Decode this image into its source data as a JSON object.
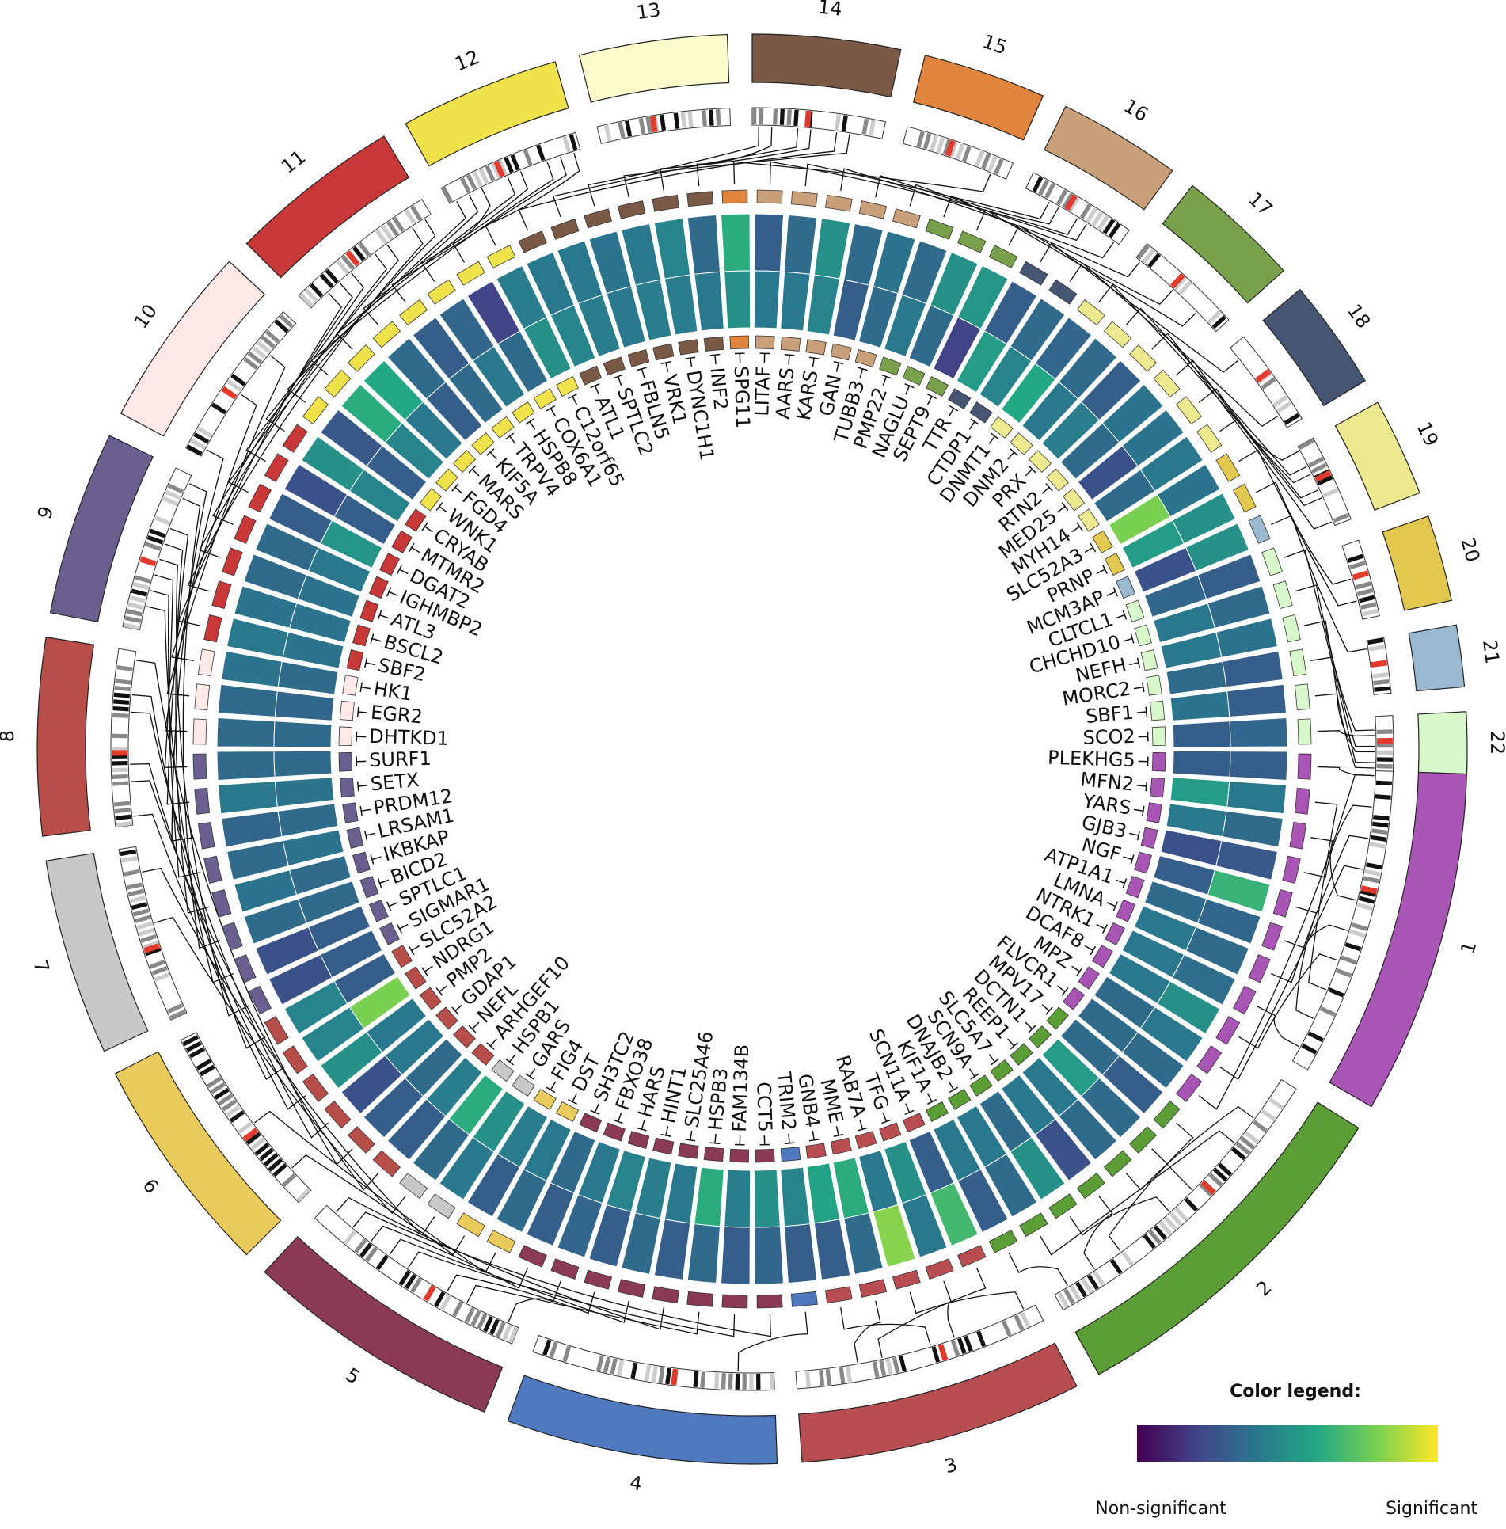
{
  "chart_data": {
    "type": "circos",
    "chromosomes": [
      {
        "label": "1",
        "color": "#a855b5"
      },
      {
        "label": "2",
        "color": "#5a9e35"
      },
      {
        "label": "3",
        "color": "#b84e52"
      },
      {
        "label": "4",
        "color": "#4f79bf"
      },
      {
        "label": "5",
        "color": "#8b3a55"
      },
      {
        "label": "6",
        "color": "#e8cb5a"
      },
      {
        "label": "7",
        "color": "#c8c8c8"
      },
      {
        "label": "8",
        "color": "#b84e4a"
      },
      {
        "label": "9",
        "color": "#6a6090"
      },
      {
        "label": "10",
        "color": "#fde8e8"
      },
      {
        "label": "11",
        "color": "#c83838"
      },
      {
        "label": "12",
        "color": "#f0e24a"
      },
      {
        "label": "13",
        "color": "#fbfbcc"
      },
      {
        "label": "14",
        "color": "#7a5a46"
      },
      {
        "label": "15",
        "color": "#e0843e"
      },
      {
        "label": "16",
        "color": "#c9a07a"
      },
      {
        "label": "17",
        "color": "#79a04a"
      },
      {
        "label": "18",
        "color": "#465672"
      },
      {
        "label": "19",
        "color": "#ece98f"
      },
      {
        "label": "20",
        "color": "#e2c84e"
      },
      {
        "label": "21",
        "color": "#9ab8d0"
      },
      {
        "label": "22",
        "color": "#d8f8cc"
      }
    ],
    "genes": [
      {
        "name": "PLEKHG5",
        "chr": "1",
        "scores": [
          0.3,
          0.3
        ]
      },
      {
        "name": "MFN2",
        "chr": "1",
        "scores": [
          0.4,
          0.55
        ]
      },
      {
        "name": "YARS",
        "chr": "1",
        "scores": [
          0.35,
          0.4
        ]
      },
      {
        "name": "GJB3",
        "chr": "1",
        "scores": [
          0.28,
          0.25
        ]
      },
      {
        "name": "NGF",
        "chr": "1",
        "scores": [
          0.65,
          0.3
        ]
      },
      {
        "name": "ATP1A1",
        "chr": "1",
        "scores": [
          0.33,
          0.35
        ]
      },
      {
        "name": "LMNA",
        "chr": "1",
        "scores": [
          0.35,
          0.4
        ]
      },
      {
        "name": "NTRK1",
        "chr": "1",
        "scores": [
          0.36,
          0.4
        ]
      },
      {
        "name": "DCAF8",
        "chr": "1",
        "scores": [
          0.5,
          0.4
        ]
      },
      {
        "name": "MPZ",
        "chr": "1",
        "scores": [
          0.4,
          0.35
        ]
      },
      {
        "name": "FLVCR1",
        "chr": "1",
        "scores": [
          0.35,
          0.35
        ]
      },
      {
        "name": "MPV17",
        "chr": "2",
        "scores": [
          0.3,
          0.35
        ]
      },
      {
        "name": "DCTN1",
        "chr": "2",
        "scores": [
          0.35,
          0.55
        ]
      },
      {
        "name": "REEP1",
        "chr": "2",
        "scores": [
          0.35,
          0.4
        ]
      },
      {
        "name": "SLC5A7",
        "chr": "2",
        "scores": [
          0.25,
          0.4
        ]
      },
      {
        "name": "SCN9A",
        "chr": "2",
        "scores": [
          0.5,
          0.35
        ]
      },
      {
        "name": "DNAJB2",
        "chr": "2",
        "scores": [
          0.35,
          0.4
        ]
      },
      {
        "name": "KIF1A",
        "chr": "2",
        "scores": [
          0.3,
          0.4
        ]
      },
      {
        "name": "SCN11A",
        "chr": "3",
        "scores": [
          0.68,
          0.3
        ]
      },
      {
        "name": "TFG",
        "chr": "3",
        "scores": [
          0.4,
          0.5
        ]
      },
      {
        "name": "RAB7A",
        "chr": "3",
        "scores": [
          0.82,
          0.4
        ]
      },
      {
        "name": "MME",
        "chr": "3",
        "scores": [
          0.35,
          0.62
        ]
      },
      {
        "name": "GNB4",
        "chr": "3",
        "scores": [
          0.3,
          0.58
        ]
      },
      {
        "name": "TRIM2",
        "chr": "4",
        "scores": [
          0.3,
          0.45
        ]
      },
      {
        "name": "CCT5",
        "chr": "5",
        "scores": [
          0.33,
          0.5
        ]
      },
      {
        "name": "FAM134B",
        "chr": "5",
        "scores": [
          0.3,
          0.42
        ]
      },
      {
        "name": "HSPB3",
        "chr": "5",
        "scores": [
          0.35,
          0.62
        ]
      },
      {
        "name": "SLC25A46",
        "chr": "5",
        "scores": [
          0.3,
          0.4
        ]
      },
      {
        "name": "HINT1",
        "chr": "5",
        "scores": [
          0.35,
          0.42
        ]
      },
      {
        "name": "HARS",
        "chr": "5",
        "scores": [
          0.3,
          0.45
        ]
      },
      {
        "name": "FBXO38",
        "chr": "5",
        "scores": [
          0.33,
          0.4
        ]
      },
      {
        "name": "SH3TC2",
        "chr": "5",
        "scores": [
          0.3,
          0.35
        ]
      },
      {
        "name": "DST",
        "chr": "6",
        "scores": [
          0.35,
          0.4
        ]
      },
      {
        "name": "FIG4",
        "chr": "6",
        "scores": [
          0.3,
          0.42
        ]
      },
      {
        "name": "GARS",
        "chr": "7",
        "scores": [
          0.4,
          0.5
        ]
      },
      {
        "name": "HSPB1",
        "chr": "7",
        "scores": [
          0.35,
          0.62
        ]
      },
      {
        "name": "ARHGEF10",
        "chr": "8",
        "scores": [
          0.3,
          0.42
        ]
      },
      {
        "name": "NEFL",
        "chr": "8",
        "scores": [
          0.3,
          0.35
        ]
      },
      {
        "name": "GDAP1",
        "chr": "8",
        "scores": [
          0.25,
          0.4
        ]
      },
      {
        "name": "PMP2",
        "chr": "8",
        "scores": [
          0.5,
          0.4
        ]
      },
      {
        "name": "NDRG1",
        "chr": "8",
        "scores": [
          0.45,
          0.8
        ]
      },
      {
        "name": "SLC52A2",
        "chr": "8",
        "scores": [
          0.45,
          0.3
        ]
      },
      {
        "name": "SIGMAR1",
        "chr": "9",
        "scores": [
          0.25,
          0.3
        ]
      },
      {
        "name": "SPTLC1",
        "chr": "9",
        "scores": [
          0.25,
          0.3
        ]
      },
      {
        "name": "BICD2",
        "chr": "9",
        "scores": [
          0.35,
          0.35
        ]
      },
      {
        "name": "IKBKAP",
        "chr": "9",
        "scores": [
          0.38,
          0.35
        ]
      },
      {
        "name": "LRSAM1",
        "chr": "9",
        "scores": [
          0.35,
          0.38
        ]
      },
      {
        "name": "PRDM12",
        "chr": "9",
        "scores": [
          0.33,
          0.35
        ]
      },
      {
        "name": "SETX",
        "chr": "9",
        "scores": [
          0.4,
          0.38
        ]
      },
      {
        "name": "SURF1",
        "chr": "9",
        "scores": [
          0.35,
          0.35
        ]
      },
      {
        "name": "DHTKD1",
        "chr": "10",
        "scores": [
          0.35,
          0.35
        ]
      },
      {
        "name": "EGR2",
        "chr": "10",
        "scores": [
          0.35,
          0.33
        ]
      },
      {
        "name": "HK1",
        "chr": "10",
        "scores": [
          0.38,
          0.35
        ]
      },
      {
        "name": "SBF2",
        "chr": "11",
        "scores": [
          0.4,
          0.38
        ]
      },
      {
        "name": "BSCL2",
        "chr": "11",
        "scores": [
          0.38,
          0.38
        ]
      },
      {
        "name": "ATL3",
        "chr": "11",
        "scores": [
          0.35,
          0.38
        ]
      },
      {
        "name": "IGHMBP2",
        "chr": "11",
        "scores": [
          0.35,
          0.4
        ]
      },
      {
        "name": "DGAT2",
        "chr": "11",
        "scores": [
          0.3,
          0.52
        ]
      },
      {
        "name": "MTMR2",
        "chr": "11",
        "scores": [
          0.25,
          0.3
        ]
      },
      {
        "name": "CRYAB",
        "chr": "11",
        "scores": [
          0.5,
          0.45
        ]
      },
      {
        "name": "WNK1",
        "chr": "12",
        "scores": [
          0.28,
          0.3
        ]
      },
      {
        "name": "FGD4",
        "chr": "12",
        "scores": [
          0.62,
          0.45
        ]
      },
      {
        "name": "MARS",
        "chr": "12",
        "scores": [
          0.6,
          0.4
        ]
      },
      {
        "name": "KIF5A",
        "chr": "12",
        "scores": [
          0.35,
          0.3
        ]
      },
      {
        "name": "TRPV4",
        "chr": "12",
        "scores": [
          0.3,
          0.35
        ]
      },
      {
        "name": "HSPB8",
        "chr": "12",
        "scores": [
          0.33,
          0.4
        ]
      },
      {
        "name": "COX6A1",
        "chr": "12",
        "scores": [
          0.2,
          0.35
        ]
      },
      {
        "name": "C12orf65",
        "chr": "12",
        "scores": [
          0.42,
          0.5
        ]
      },
      {
        "name": "ATL1",
        "chr": "14",
        "scores": [
          0.4,
          0.45
        ]
      },
      {
        "name": "SPTLC2",
        "chr": "14",
        "scores": [
          0.4,
          0.42
        ]
      },
      {
        "name": "FBLN5",
        "chr": "14",
        "scores": [
          0.38,
          0.4
        ]
      },
      {
        "name": "VRK1",
        "chr": "14",
        "scores": [
          0.4,
          0.42
        ]
      },
      {
        "name": "DYNC1H1",
        "chr": "14",
        "scores": [
          0.45,
          0.42
        ]
      },
      {
        "name": "INF2",
        "chr": "14",
        "scores": [
          0.35,
          0.4
        ]
      },
      {
        "name": "SPG11",
        "chr": "15",
        "scores": [
          0.62,
          0.5
        ]
      },
      {
        "name": "LITAF",
        "chr": "16",
        "scores": [
          0.3,
          0.4
        ]
      },
      {
        "name": "AARS",
        "chr": "16",
        "scores": [
          0.35,
          0.4
        ]
      },
      {
        "name": "KARS",
        "chr": "16",
        "scores": [
          0.5,
          0.45
        ]
      },
      {
        "name": "GAN",
        "chr": "16",
        "scores": [
          0.35,
          0.3
        ]
      },
      {
        "name": "TUBB3",
        "chr": "16",
        "scores": [
          0.38,
          0.35
        ]
      },
      {
        "name": "PMP22",
        "chr": "17",
        "scores": [
          0.35,
          0.4
        ]
      },
      {
        "name": "NAGLU",
        "chr": "17",
        "scores": [
          0.5,
          0.35
        ]
      },
      {
        "name": "SEPT9",
        "chr": "17",
        "scores": [
          0.52,
          0.2
        ]
      },
      {
        "name": "TTR",
        "chr": "18",
        "scores": [
          0.3,
          0.55
        ]
      },
      {
        "name": "CTDP1",
        "chr": "18",
        "scores": [
          0.35,
          0.45
        ]
      },
      {
        "name": "DNMT1",
        "chr": "19",
        "scores": [
          0.33,
          0.6
        ]
      },
      {
        "name": "DNM2",
        "chr": "19",
        "scores": [
          0.35,
          0.4
        ]
      },
      {
        "name": "PRX",
        "chr": "19",
        "scores": [
          0.3,
          0.42
        ]
      },
      {
        "name": "RTN2",
        "chr": "19",
        "scores": [
          0.38,
          0.35
        ]
      },
      {
        "name": "MED25",
        "chr": "19",
        "scores": [
          0.38,
          0.25
        ]
      },
      {
        "name": "MYH14",
        "chr": "19",
        "scores": [
          0.4,
          0.35
        ]
      },
      {
        "name": "SLC52A3",
        "chr": "20",
        "scores": [
          0.38,
          0.8
        ]
      },
      {
        "name": "PRNP",
        "chr": "20",
        "scores": [
          0.5,
          0.55
        ]
      },
      {
        "name": "MCM3AP",
        "chr": "21",
        "scores": [
          0.5,
          0.25
        ]
      },
      {
        "name": "CLTCL1",
        "chr": "22",
        "scores": [
          0.3,
          0.33
        ]
      },
      {
        "name": "CHCHD10",
        "chr": "22",
        "scores": [
          0.35,
          0.4
        ]
      },
      {
        "name": "NEFH",
        "chr": "22",
        "scores": [
          0.38,
          0.4
        ]
      },
      {
        "name": "MORC2",
        "chr": "22",
        "scores": [
          0.3,
          0.35
        ]
      },
      {
        "name": "SBF1",
        "chr": "22",
        "scores": [
          0.3,
          0.38
        ]
      },
      {
        "name": "SCO2",
        "chr": "22",
        "scores": [
          0.33,
          0.3
        ]
      }
    ],
    "legend": {
      "title": "Color legend:",
      "low": "Non-significant",
      "high": "Significant"
    }
  }
}
